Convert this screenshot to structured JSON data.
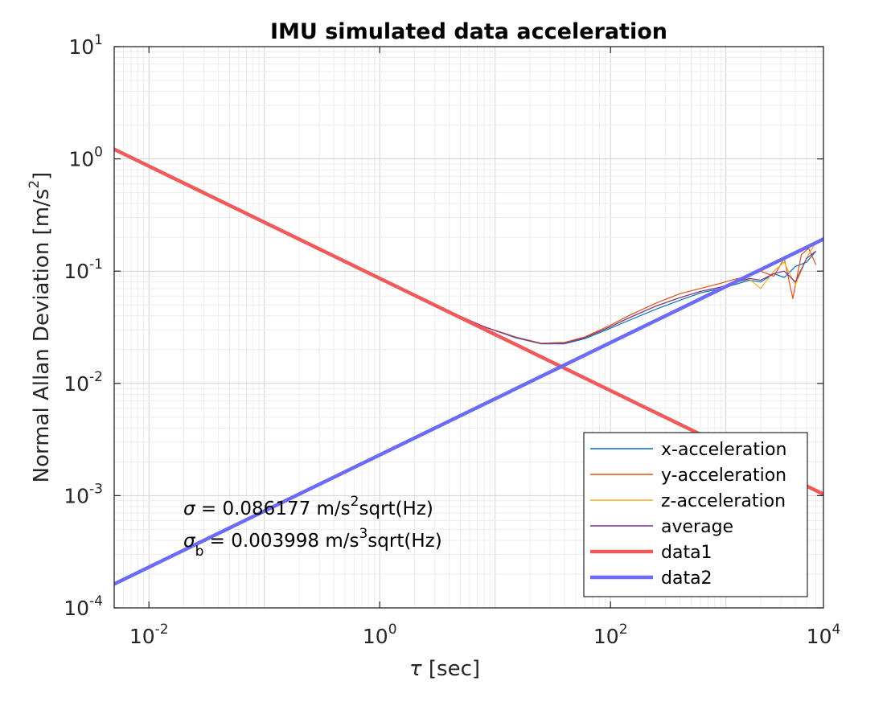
{
  "chart_data": {
    "type": "line",
    "title": "IMU simulated data acceleration",
    "xlabel_symbol": "τ",
    "xlabel_unit": "[sec]",
    "ylabel": "Normal Allan Deviation [m/s",
    "ylabel_exp": "2",
    "ylabel_close": "]",
    "xscale": "log",
    "yscale": "log",
    "xlim": [
      0.005,
      7000
    ],
    "ylim": [
      0.0001,
      10
    ],
    "grid": true,
    "minor_grid": true,
    "x_ticks": [
      {
        "base": "10",
        "exp": "-2",
        "value": 0.01
      },
      {
        "base": "10",
        "exp": "0",
        "value": 1
      },
      {
        "base": "10",
        "exp": "2",
        "value": 100
      },
      {
        "base": "10",
        "exp": "4",
        "value": 10000
      }
    ],
    "y_ticks": [
      {
        "base": "10",
        "exp": "-4",
        "value": 0.0001
      },
      {
        "base": "10",
        "exp": "-3",
        "value": 0.001
      },
      {
        "base": "10",
        "exp": "-2",
        "value": 0.01
      },
      {
        "base": "10",
        "exp": "-1",
        "value": 0.1
      },
      {
        "base": "10",
        "exp": "0",
        "value": 1
      },
      {
        "base": "10",
        "exp": "1",
        "value": 10
      }
    ],
    "legend_placement": "bottom-right",
    "series": [
      {
        "name": "x-acceleration",
        "color": "#0072BD",
        "width": 1.2,
        "x": [
          0.005,
          0.02,
          0.1,
          0.5,
          2,
          8,
          15,
          25,
          40,
          60,
          100,
          150,
          250,
          400,
          600,
          900,
          1200,
          1600,
          2000,
          2600,
          3200,
          4000,
          5000,
          6000
        ],
        "y": [
          1.2,
          0.6,
          0.27,
          0.12,
          0.06,
          0.032,
          0.0255,
          0.0225,
          0.0225,
          0.025,
          0.031,
          0.037,
          0.046,
          0.055,
          0.064,
          0.07,
          0.076,
          0.083,
          0.08,
          0.095,
          0.088,
          0.11,
          0.12,
          0.15
        ]
      },
      {
        "name": "y-acceleration",
        "color": "#D95319",
        "width": 1.2,
        "x": [
          0.005,
          0.02,
          0.1,
          0.5,
          2,
          8,
          15,
          25,
          40,
          60,
          100,
          150,
          250,
          400,
          600,
          900,
          1200,
          1600,
          2000,
          2600,
          3200,
          3800,
          4500,
          5200,
          6000
        ],
        "y": [
          1.2,
          0.6,
          0.27,
          0.12,
          0.06,
          0.032,
          0.026,
          0.0228,
          0.0232,
          0.026,
          0.033,
          0.041,
          0.052,
          0.063,
          0.07,
          0.078,
          0.085,
          0.09,
          0.1,
          0.09,
          0.13,
          0.057,
          0.14,
          0.16,
          0.115
        ]
      },
      {
        "name": "z-acceleration",
        "color": "#EDB120",
        "width": 1.2,
        "x": [
          0.005,
          0.02,
          0.1,
          0.5,
          2,
          8,
          15,
          25,
          40,
          60,
          100,
          150,
          250,
          400,
          600,
          900,
          1200,
          1600,
          2000,
          2600,
          3200,
          4000,
          5000,
          6000
        ],
        "y": [
          1.2,
          0.6,
          0.27,
          0.12,
          0.06,
          0.032,
          0.0258,
          0.0226,
          0.0228,
          0.0255,
          0.032,
          0.039,
          0.049,
          0.058,
          0.066,
          0.072,
          0.079,
          0.085,
          0.07,
          0.1,
          0.12,
          0.075,
          0.13,
          0.18
        ]
      },
      {
        "name": "average",
        "color": "#7E2F8E",
        "width": 1.2,
        "x": [
          0.005,
          0.02,
          0.1,
          0.5,
          2,
          8,
          15,
          25,
          40,
          60,
          100,
          150,
          250,
          400,
          600,
          900,
          1200,
          1600,
          2000,
          2600,
          3200,
          4000,
          5000,
          6000
        ],
        "y": [
          1.2,
          0.6,
          0.27,
          0.12,
          0.06,
          0.032,
          0.0257,
          0.0226,
          0.0228,
          0.0255,
          0.032,
          0.039,
          0.049,
          0.058,
          0.066,
          0.072,
          0.079,
          0.086,
          0.083,
          0.095,
          0.1,
          0.08,
          0.13,
          0.15
        ]
      },
      {
        "name": "data1",
        "color": "#F15A5A",
        "width": 4.5,
        "x": [
          0.005,
          7000
        ],
        "y": [
          1.219,
          0.00103
        ]
      },
      {
        "name": "data2",
        "color": "#6B6BF5",
        "width": 4.5,
        "x": [
          0.005,
          7000
        ],
        "y": [
          0.000163,
          0.193
        ]
      }
    ],
    "annotations": [
      {
        "symbol": "σ",
        "sub": "",
        "text_pre": " = 0.086177 m/s",
        "sup": "2",
        "text_post": "sqrt(Hz)"
      },
      {
        "symbol": "σ",
        "sub": "b",
        "text_pre": " = 0.003998 m/s",
        "sup": "3",
        "text_post": "sqrt(Hz)"
      }
    ]
  }
}
